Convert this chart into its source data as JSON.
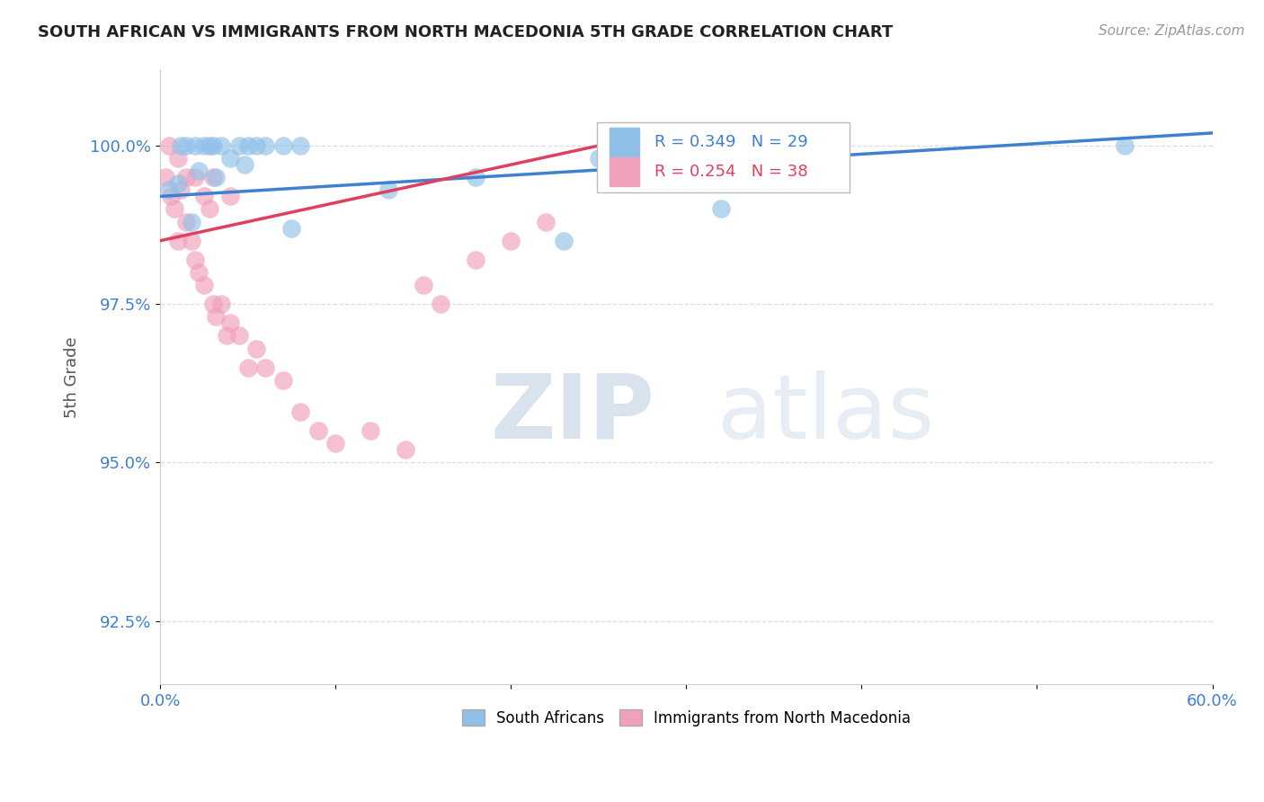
{
  "title": "SOUTH AFRICAN VS IMMIGRANTS FROM NORTH MACEDONIA 5TH GRADE CORRELATION CHART",
  "source": "Source: ZipAtlas.com",
  "ylabel": "5th Grade",
  "xlim": [
    0.0,
    60.0
  ],
  "ylim": [
    91.5,
    101.2
  ],
  "yticks": [
    92.5,
    95.0,
    97.5,
    100.0
  ],
  "xticks": [
    0.0,
    10.0,
    20.0,
    30.0,
    40.0,
    50.0,
    60.0
  ],
  "ytick_labels": [
    "92.5%",
    "95.0%",
    "97.5%",
    "100.0%"
  ],
  "legend_blue_r": "R = 0.349",
  "legend_blue_n": "N = 29",
  "legend_pink_r": "R = 0.254",
  "legend_pink_n": "N = 38",
  "blue_color": "#90C0E8",
  "pink_color": "#F0A0B8",
  "blue_line_color": "#4080D0",
  "pink_line_color": "#E04060",
  "blue_scatter_x": [
    0.5,
    1.0,
    1.2,
    1.5,
    2.0,
    2.2,
    2.5,
    2.8,
    3.0,
    3.5,
    4.0,
    4.5,
    5.0,
    5.5,
    6.0,
    7.0,
    8.0,
    13.0,
    23.0,
    25.0,
    28.0,
    32.0,
    55.0,
    1.8,
    3.2,
    4.8,
    7.5,
    18.0,
    37.0
  ],
  "blue_scatter_y": [
    99.3,
    99.4,
    100.0,
    100.0,
    100.0,
    99.6,
    100.0,
    100.0,
    100.0,
    100.0,
    99.8,
    100.0,
    100.0,
    100.0,
    100.0,
    100.0,
    100.0,
    99.3,
    98.5,
    99.8,
    100.0,
    99.0,
    100.0,
    98.8,
    99.5,
    99.7,
    98.7,
    99.5,
    100.0
  ],
  "pink_scatter_x": [
    0.3,
    0.5,
    0.6,
    0.8,
    1.0,
    1.0,
    1.2,
    1.5,
    1.5,
    1.8,
    2.0,
    2.0,
    2.2,
    2.5,
    2.5,
    2.8,
    3.0,
    3.0,
    3.2,
    3.5,
    3.8,
    4.0,
    4.0,
    4.5,
    5.0,
    5.5,
    6.0,
    7.0,
    8.0,
    9.0,
    10.0,
    12.0,
    14.0,
    15.0,
    16.0,
    18.0,
    20.0,
    22.0
  ],
  "pink_scatter_y": [
    99.5,
    100.0,
    99.2,
    99.0,
    99.8,
    98.5,
    99.3,
    99.5,
    98.8,
    98.5,
    99.5,
    98.2,
    98.0,
    99.2,
    97.8,
    99.0,
    99.5,
    97.5,
    97.3,
    97.5,
    97.0,
    99.2,
    97.2,
    97.0,
    96.5,
    96.8,
    96.5,
    96.3,
    95.8,
    95.5,
    95.3,
    95.5,
    95.2,
    97.8,
    97.5,
    98.2,
    98.5,
    98.8
  ],
  "blue_trendline_x": [
    0.0,
    60.0
  ],
  "blue_trendline_y": [
    99.2,
    100.2
  ],
  "pink_trendline_x": [
    0.0,
    30.0
  ],
  "pink_trendline_y": [
    98.5,
    100.3
  ],
  "watermark_zip": "ZIP",
  "watermark_atlas": "atlas",
  "background_color": "#FFFFFF",
  "grid_color": "#DDDDDD"
}
